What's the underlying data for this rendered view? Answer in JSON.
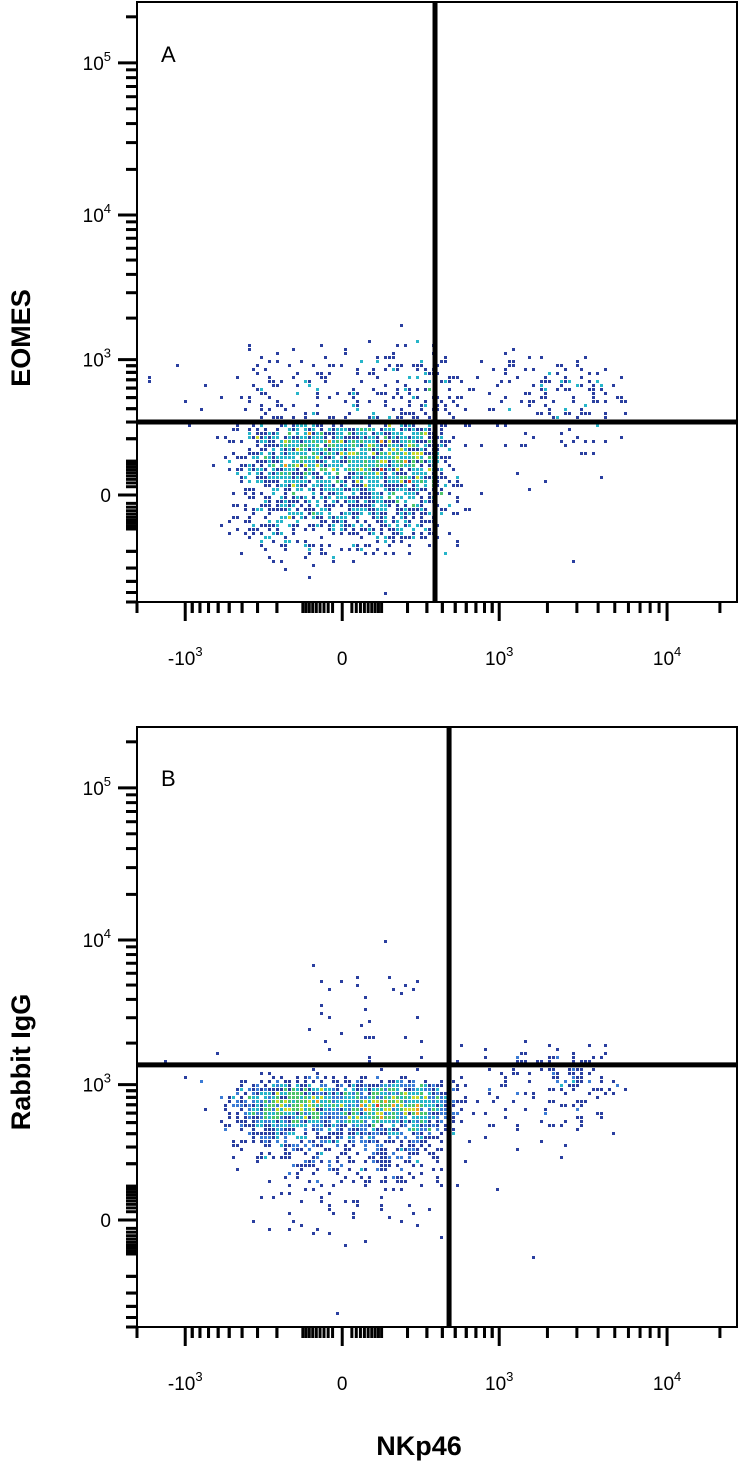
{
  "chart_data": [
    {
      "type": "scatter",
      "subtype": "flow-cytometry-density-dotplot",
      "panel_label": "A",
      "xlabel": "",
      "ylabel": "EOMES",
      "x_scale": "biexponential",
      "y_scale": "biexponential",
      "xlim": [
        -2000,
        25000
      ],
      "ylim": [
        -600,
        250000
      ],
      "x_ticks": [
        {
          "value": -1000,
          "base": "-10",
          "exp": "3"
        },
        {
          "value": 0,
          "base": "0",
          "exp": ""
        },
        {
          "value": 1000,
          "base": "10",
          "exp": "3"
        },
        {
          "value": 10000,
          "base": "10",
          "exp": "4"
        }
      ],
      "y_ticks": [
        {
          "value": 0,
          "base": "0",
          "exp": ""
        },
        {
          "value": 1000,
          "base": "10",
          "exp": "3"
        },
        {
          "value": 10000,
          "base": "10",
          "exp": "4"
        },
        {
          "value": 100000,
          "base": "10",
          "exp": "5"
        }
      ],
      "quadrant_gate": {
        "x": 350,
        "y": 300
      },
      "populations": [
        {
          "name": "",
          "center_x": 20,
          "center_y": 70,
          "spread_x": 180,
          "spread_y": 110,
          "count": 2200
        },
        {
          "name": "",
          "center_x": 100,
          "center_y": 550,
          "spread_x": 220,
          "spread_y": 350,
          "count": 260
        },
        {
          "name": "",
          "center_x": 1900,
          "center_y": 520,
          "spread_x": 1500,
          "spread_y": 260,
          "count": 200
        }
      ],
      "density_colors": [
        "#2a3fa0",
        "#3a7bd5",
        "#27b5c9",
        "#4cc46a",
        "#c9d92a",
        "#f2a020",
        "#e23a20"
      ]
    },
    {
      "type": "scatter",
      "subtype": "flow-cytometry-density-dotplot",
      "panel_label": "B",
      "xlabel": "NKp46",
      "ylabel": "Rabbit IgG",
      "x_scale": "biexponential",
      "y_scale": "biexponential",
      "xlim": [
        -2000,
        25000
      ],
      "ylim": [
        -600,
        250000
      ],
      "x_ticks": [
        {
          "value": -1000,
          "base": "-10",
          "exp": "3"
        },
        {
          "value": 0,
          "base": "0",
          "exp": ""
        },
        {
          "value": 1000,
          "base": "10",
          "exp": "3"
        },
        {
          "value": 10000,
          "base": "10",
          "exp": "4"
        }
      ],
      "y_ticks": [
        {
          "value": 0,
          "base": "0",
          "exp": ""
        },
        {
          "value": 1000,
          "base": "10",
          "exp": "3"
        },
        {
          "value": 10000,
          "base": "10",
          "exp": "4"
        },
        {
          "value": 100000,
          "base": "10",
          "exp": "5"
        }
      ],
      "quadrant_gate": {
        "x": 450,
        "y": 1400
      },
      "populations": [
        {
          "name": "",
          "center_x": 20,
          "center_y": 650,
          "spread_x": 200,
          "spread_y": 180,
          "count": 2200
        },
        {
          "name": "",
          "center_x": 30,
          "center_y": 200,
          "spread_x": 160,
          "spread_y": 120,
          "count": 220
        },
        {
          "name": "",
          "center_x": 80,
          "center_y": 3500,
          "spread_x": 90,
          "spread_y": 2500,
          "count": 40
        },
        {
          "name": "",
          "center_x": 2200,
          "center_y": 1000,
          "spread_x": 1500,
          "spread_y": 380,
          "count": 190
        }
      ],
      "density_colors": [
        "#2a3fa0",
        "#3a7bd5",
        "#27b5c9",
        "#4cc46a",
        "#c9d92a",
        "#f2a020",
        "#e23a20"
      ]
    }
  ]
}
